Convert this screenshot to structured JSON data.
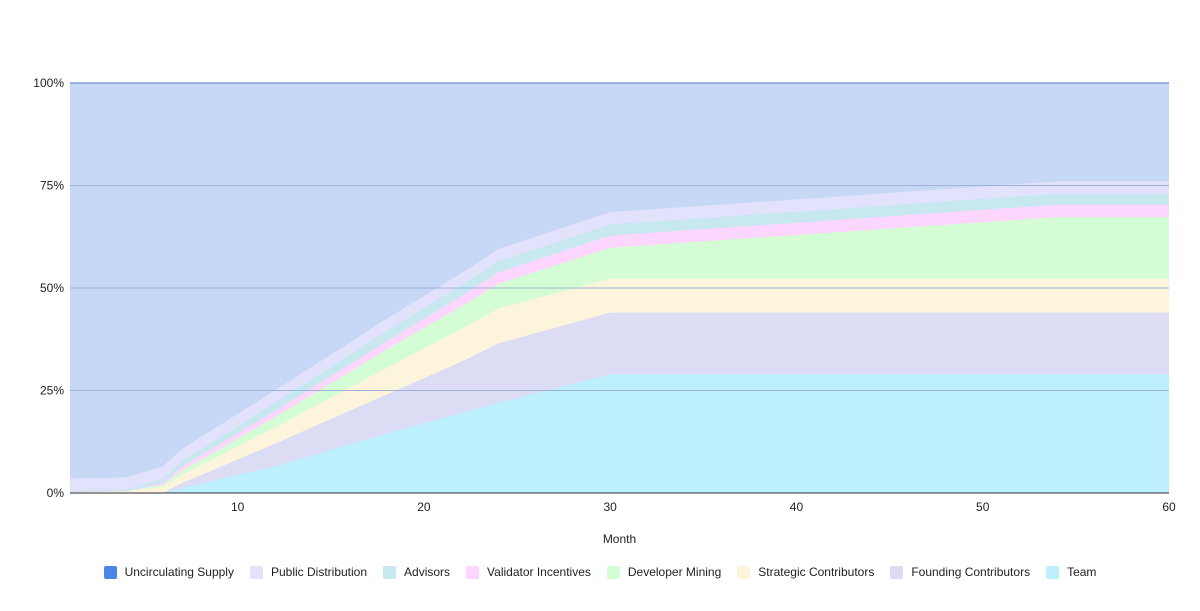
{
  "chart_data": {
    "type": "area",
    "stacking": "percent",
    "xlabel": "Month",
    "ylabel": "",
    "title": "",
    "xlim": [
      1,
      60
    ],
    "ylim": [
      0,
      100
    ],
    "x_ticks": [
      10,
      20,
      30,
      40,
      50,
      60
    ],
    "y_ticks": [
      "0%",
      "25%",
      "50%",
      "75%",
      "100%"
    ],
    "grid": true,
    "legend_position": "bottom",
    "x": [
      1,
      4,
      6,
      7,
      12,
      18,
      22,
      24,
      30,
      54,
      60
    ],
    "series": [
      {
        "name": "Team",
        "color": "#bdeffc",
        "values": [
          0,
          0,
          0,
          1.2,
          6.5,
          14.5,
          19.5,
          22,
          29,
          29,
          29
        ]
      },
      {
        "name": "Founding Contributors",
        "color": "#dcdcf4",
        "values": [
          0,
          0,
          0,
          1.2,
          5.5,
          9.5,
          12.5,
          14.5,
          15,
          15,
          15
        ]
      },
      {
        "name": "Strategic Contributors",
        "color": "#fdf4dc",
        "values": [
          0.3,
          0.5,
          1.5,
          2,
          4,
          6.5,
          8,
          8.5,
          8.3,
          8.3,
          8.3
        ]
      },
      {
        "name": "Developer Mining",
        "color": "#d5fdd5",
        "values": [
          0,
          0,
          0.5,
          1,
          2.5,
          4.5,
          5.5,
          6,
          7.5,
          15,
          15
        ]
      },
      {
        "name": "Validator Incentives",
        "color": "#fcd6fc",
        "values": [
          0,
          0,
          0.5,
          1,
          1.5,
          2,
          2.5,
          2.8,
          3,
          3,
          3
        ]
      },
      {
        "name": "Advisors",
        "color": "#c6e8ee",
        "values": [
          0.2,
          0.3,
          1,
          1.3,
          2,
          2.5,
          2.6,
          2.7,
          2.7,
          2.7,
          2.7
        ]
      },
      {
        "name": "Public Distribution",
        "color": "#e2e2fc",
        "values": [
          3,
          3,
          3,
          3,
          3,
          3,
          3,
          3,
          3,
          3,
          3
        ]
      },
      {
        "name": "Uncirculating Supply",
        "color": "#c6d8f6",
        "legend_color": "#4a86e8",
        "values": [
          96.5,
          96.2,
          93.5,
          89.3,
          75,
          57.5,
          46.4,
          40.5,
          31.5,
          24,
          24
        ]
      }
    ]
  },
  "legend": [
    {
      "label": "Uncirculating Supply",
      "color": "#4a86e8"
    },
    {
      "label": "Public Distribution",
      "color": "#e2e2fc"
    },
    {
      "label": "Advisors",
      "color": "#c6e8ee"
    },
    {
      "label": "Validator Incentives",
      "color": "#fcd6fc"
    },
    {
      "label": "Developer Mining",
      "color": "#d5fdd5"
    },
    {
      "label": "Strategic Contributors",
      "color": "#fdf4dc"
    },
    {
      "label": "Founding Contributors",
      "color": "#dcdcf4"
    },
    {
      "label": "Team",
      "color": "#bdeffc"
    }
  ]
}
